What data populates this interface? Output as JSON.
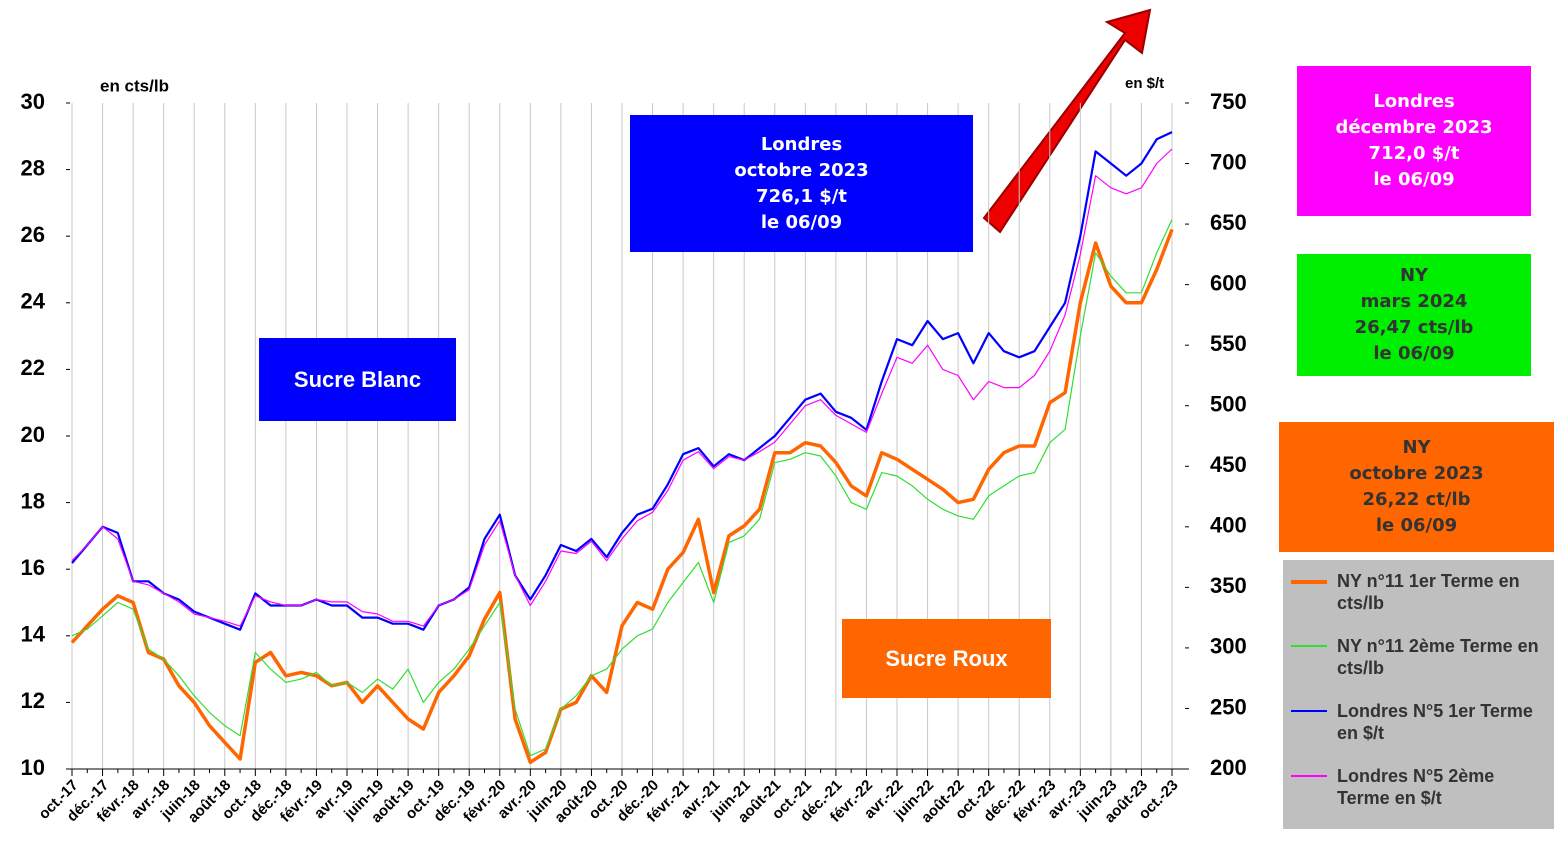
{
  "chart_data": {
    "type": "line",
    "ylabel": "en cts/lb",
    "y2label": "en $/t",
    "categories": [
      "oct.-17",
      null,
      "déc.-17",
      null,
      "févr.-18",
      null,
      "avr.-18",
      null,
      "juin-18",
      null,
      "août-18",
      null,
      "oct.-18",
      null,
      "déc.-18",
      null,
      "févr.-19",
      null,
      "avr.-19",
      null,
      "juin-19",
      null,
      "août-19",
      null,
      "oct.-19",
      null,
      "déc.-19",
      null,
      "févr.-20",
      null,
      "avr.-20",
      null,
      "juin-20",
      null,
      "août-20",
      null,
      "oct.-20",
      null,
      "déc.-20",
      null,
      "févr.-21",
      null,
      "avr.-21",
      null,
      "juin-21",
      null,
      "août-21",
      null,
      "oct.-21",
      null,
      "déc.-21",
      null,
      "févr.-22",
      null,
      "avr.-22",
      null,
      "juin-22",
      null,
      "août-22",
      null,
      "oct.-22",
      null,
      "déc.-22",
      null,
      "févr.-23",
      null,
      "avr.-23",
      null,
      "juin-23",
      null,
      "août-23",
      null,
      "oct.-23"
    ],
    "ylim": [
      10,
      30
    ],
    "yticks": [
      10,
      12,
      14,
      16,
      18,
      20,
      22,
      24,
      26,
      28,
      30
    ],
    "y2lim": [
      200,
      750
    ],
    "y2ticks": [
      200,
      250,
      300,
      350,
      400,
      450,
      500,
      550,
      600,
      650,
      700,
      750
    ],
    "grid": true,
    "series": [
      {
        "name": "NY n°11 1er Terme en cts/lb",
        "color": "#ff6600",
        "axis": "y",
        "values": [
          13.8,
          14.3,
          14.8,
          15.2,
          15.0,
          13.5,
          13.3,
          12.5,
          12.0,
          11.3,
          10.8,
          10.3,
          13.2,
          13.5,
          12.8,
          12.9,
          12.8,
          12.5,
          12.6,
          12.0,
          12.5,
          12.0,
          11.5,
          11.2,
          12.3,
          12.8,
          13.4,
          14.5,
          15.3,
          11.5,
          10.2,
          10.5,
          11.8,
          12.0,
          12.8,
          12.3,
          14.3,
          15.0,
          14.8,
          16.0,
          16.5,
          17.5,
          15.3,
          17.0,
          17.3,
          17.8,
          19.5,
          19.5,
          19.8,
          19.7,
          19.2,
          18.5,
          18.2,
          19.5,
          19.3,
          19.0,
          18.7,
          18.4,
          18.0,
          18.1,
          19.0,
          19.5,
          19.7,
          19.7,
          21.0,
          21.3,
          24.0,
          25.8,
          24.5,
          24.0,
          24.0,
          25.0,
          26.2
        ]
      },
      {
        "name": "NY n°11 2ème Terme en cts/lb",
        "color": "#33dd33",
        "axis": "y",
        "values": [
          14.0,
          14.2,
          14.6,
          15.0,
          14.8,
          13.6,
          13.3,
          12.8,
          12.2,
          11.7,
          11.3,
          11.0,
          13.5,
          13.0,
          12.6,
          12.7,
          12.9,
          12.5,
          12.6,
          12.3,
          12.7,
          12.4,
          13.0,
          12.0,
          12.6,
          13.0,
          13.6,
          14.3,
          15.0,
          11.8,
          10.4,
          10.6,
          11.8,
          12.2,
          12.8,
          13.0,
          13.6,
          14.0,
          14.2,
          15.0,
          15.6,
          16.2,
          15.0,
          16.8,
          17.0,
          17.5,
          19.2,
          19.3,
          19.5,
          19.4,
          18.8,
          18.0,
          17.8,
          18.9,
          18.8,
          18.5,
          18.1,
          17.8,
          17.6,
          17.5,
          18.2,
          18.5,
          18.8,
          18.9,
          19.8,
          20.2,
          23.0,
          25.5,
          24.8,
          24.3,
          24.3,
          25.5,
          26.5
        ]
      },
      {
        "name": "Londres N°5 1er Terme en $/t",
        "color": "#0000ff",
        "axis": "y2",
        "values": [
          370,
          385,
          400,
          395,
          355,
          355,
          345,
          340,
          330,
          325,
          320,
          315,
          345,
          335,
          335,
          335,
          340,
          335,
          335,
          325,
          325,
          320,
          320,
          315,
          335,
          340,
          350,
          390,
          410,
          360,
          340,
          360,
          385,
          380,
          390,
          375,
          395,
          410,
          415,
          435,
          460,
          465,
          450,
          460,
          455,
          465,
          475,
          490,
          505,
          510,
          495,
          490,
          480,
          520,
          555,
          550,
          570,
          555,
          560,
          535,
          560,
          545,
          540,
          545,
          565,
          585,
          640,
          710,
          700,
          690,
          700,
          720,
          726
        ]
      },
      {
        "name": "Londres N°5 2ème Terme en $/t",
        "color": "#ff00ff",
        "axis": "y2",
        "values": [
          372,
          385,
          400,
          390,
          355,
          352,
          345,
          338,
          328,
          325,
          322,
          318,
          343,
          338,
          335,
          335,
          340,
          338,
          338,
          330,
          328,
          322,
          322,
          318,
          335,
          340,
          348,
          385,
          405,
          360,
          335,
          355,
          380,
          378,
          388,
          372,
          390,
          405,
          412,
          430,
          455,
          462,
          448,
          458,
          455,
          462,
          470,
          485,
          500,
          505,
          492,
          485,
          478,
          510,
          540,
          535,
          550,
          530,
          525,
          505,
          520,
          515,
          515,
          525,
          545,
          575,
          625,
          690,
          680,
          675,
          680,
          700,
          712
        ]
      }
    ],
    "boxes": [
      {
        "lines": [
          "Londres",
          "octobre 2023",
          "726,1 $/t",
          "le 06/09"
        ],
        "color": "#0000ff",
        "text_color": "#ffffff"
      },
      {
        "lines": [
          "Londres",
          "décembre 2023",
          "712,0 $/t",
          "le 06/09"
        ],
        "color": "#ff00ff",
        "text_color": "#ffffff"
      },
      {
        "lines": [
          "NY",
          "mars 2024",
          "26,47 cts/lb",
          "le 06/09"
        ],
        "color": "#00ee00",
        "text_color": "#333333"
      },
      {
        "lines": [
          "NY",
          "octobre 2023",
          "26,22 ct/lb",
          "le 06/09"
        ],
        "color": "#ff6600",
        "text_color": "#333333"
      },
      {
        "lines": [
          "Sucre Blanc"
        ],
        "color": "#0000ff",
        "text_color": "#ffffff"
      },
      {
        "lines": [
          "Sucre Roux"
        ],
        "color": "#ff6600",
        "text_color": "#ffffff"
      }
    ]
  }
}
